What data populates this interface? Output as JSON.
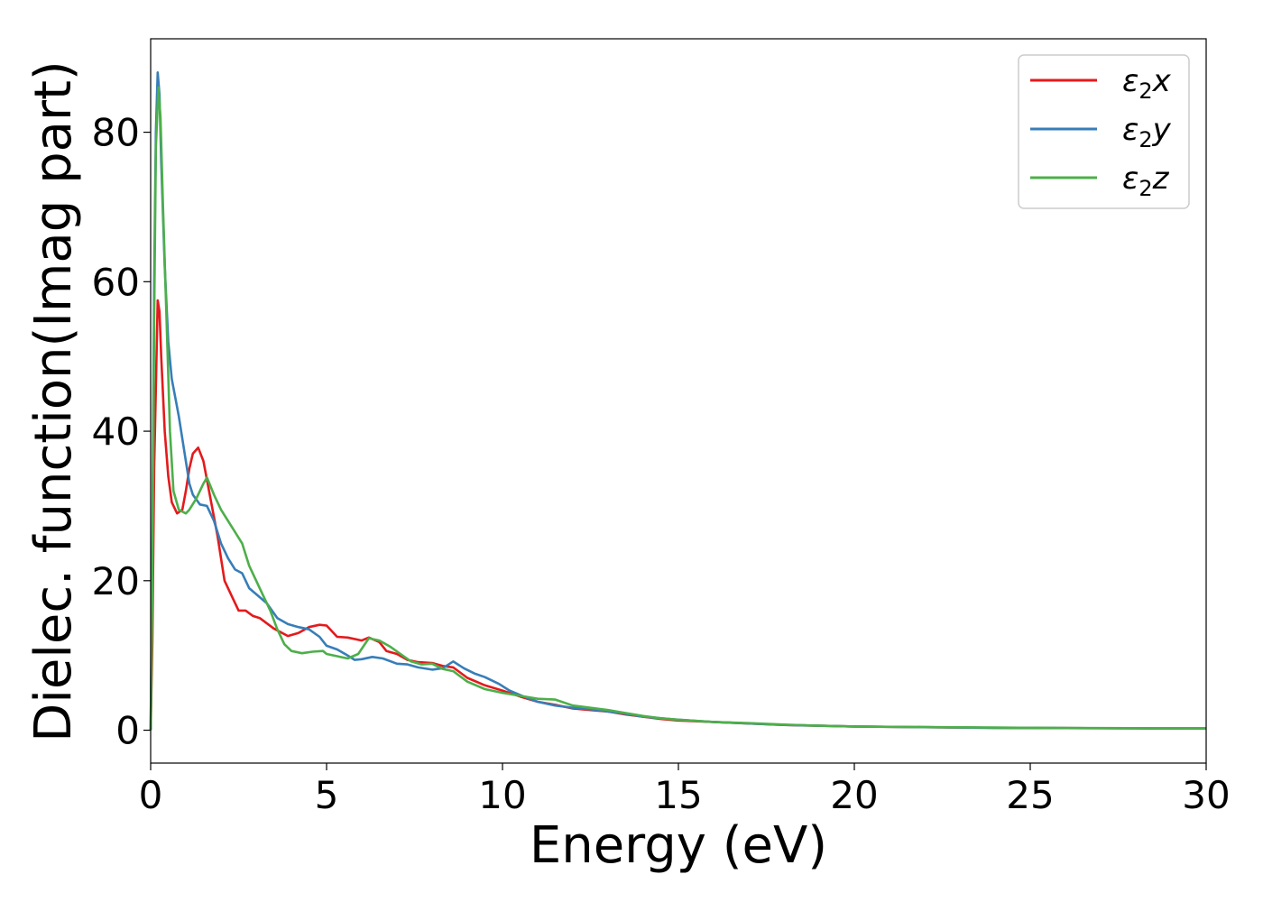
{
  "chart_data": {
    "type": "line",
    "xlabel": "Energy (eV)",
    "ylabel": "Dielec. function(Imag part)",
    "xlim": [
      0,
      30
    ],
    "ylim": [
      -4.4,
      92.5
    ],
    "xticks": [
      0,
      5,
      10,
      15,
      20,
      25,
      30
    ],
    "yticks": [
      0,
      20,
      40,
      60,
      80
    ],
    "grid": false,
    "legend_position": "top-right",
    "series": [
      {
        "name": "ε₂x",
        "legend_base": "ε",
        "legend_sub": "2",
        "legend_var": "x",
        "color": "#e41a1c",
        "points": [
          [
            0,
            0
          ],
          [
            0.05,
            12
          ],
          [
            0.1,
            35
          ],
          [
            0.2,
            57.5
          ],
          [
            0.25,
            56
          ],
          [
            0.3,
            50
          ],
          [
            0.4,
            40
          ],
          [
            0.5,
            34
          ],
          [
            0.6,
            30.5
          ],
          [
            0.75,
            29
          ],
          [
            0.9,
            29.5
          ],
          [
            1.0,
            32
          ],
          [
            1.1,
            35
          ],
          [
            1.2,
            37
          ],
          [
            1.35,
            37.8
          ],
          [
            1.5,
            36
          ],
          [
            1.7,
            31
          ],
          [
            1.9,
            26
          ],
          [
            2.1,
            20
          ],
          [
            2.3,
            18
          ],
          [
            2.5,
            16
          ],
          [
            2.7,
            16
          ],
          [
            2.9,
            15.3
          ],
          [
            3.1,
            15
          ],
          [
            3.5,
            13.6
          ],
          [
            3.9,
            12.6
          ],
          [
            4.2,
            13
          ],
          [
            4.5,
            13.8
          ],
          [
            4.8,
            14.1
          ],
          [
            5.0,
            14
          ],
          [
            5.3,
            12.5
          ],
          [
            5.6,
            12.4
          ],
          [
            6.0,
            12
          ],
          [
            6.2,
            12.4
          ],
          [
            6.5,
            11.8
          ],
          [
            6.7,
            10.6
          ],
          [
            7.0,
            10.2
          ],
          [
            7.3,
            9.4
          ],
          [
            7.6,
            9.1
          ],
          [
            8.0,
            9
          ],
          [
            8.3,
            8.6
          ],
          [
            8.6,
            8.4
          ],
          [
            9.0,
            7
          ],
          [
            9.5,
            6
          ],
          [
            10.0,
            5.3
          ],
          [
            10.5,
            4.5
          ],
          [
            11.0,
            3.8
          ],
          [
            11.5,
            3.4
          ],
          [
            12.0,
            2.9
          ],
          [
            12.5,
            2.7
          ],
          [
            13.0,
            2.5
          ],
          [
            13.5,
            2.1
          ],
          [
            14.0,
            1.8
          ],
          [
            14.5,
            1.5
          ],
          [
            15.0,
            1.3
          ],
          [
            16.0,
            1.1
          ],
          [
            17.0,
            0.9
          ],
          [
            18.0,
            0.7
          ],
          [
            19.0,
            0.6
          ],
          [
            20.0,
            0.5
          ],
          [
            22.0,
            0.4
          ],
          [
            24.0,
            0.32
          ],
          [
            26.0,
            0.28
          ],
          [
            28.0,
            0.25
          ],
          [
            30.0,
            0.23
          ]
        ]
      },
      {
        "name": "ε₂y",
        "legend_base": "ε",
        "legend_sub": "2",
        "legend_var": "y",
        "color": "#377eb8",
        "points": [
          [
            0,
            0
          ],
          [
            0.05,
            25
          ],
          [
            0.1,
            60
          ],
          [
            0.15,
            80
          ],
          [
            0.2,
            88
          ],
          [
            0.25,
            85
          ],
          [
            0.3,
            76
          ],
          [
            0.4,
            62
          ],
          [
            0.5,
            52
          ],
          [
            0.6,
            47
          ],
          [
            0.7,
            44.5
          ],
          [
            0.8,
            42
          ],
          [
            0.9,
            39
          ],
          [
            1.0,
            36
          ],
          [
            1.1,
            33
          ],
          [
            1.2,
            31.5
          ],
          [
            1.4,
            30.2
          ],
          [
            1.6,
            30
          ],
          [
            1.8,
            28
          ],
          [
            2.0,
            25
          ],
          [
            2.2,
            23
          ],
          [
            2.4,
            21.5
          ],
          [
            2.6,
            21
          ],
          [
            2.8,
            19
          ],
          [
            3.0,
            18.2
          ],
          [
            3.3,
            17
          ],
          [
            3.6,
            15
          ],
          [
            3.9,
            14.2
          ],
          [
            4.2,
            13.8
          ],
          [
            4.5,
            13.5
          ],
          [
            4.8,
            12.5
          ],
          [
            5.0,
            11.3
          ],
          [
            5.3,
            10.8
          ],
          [
            5.6,
            10
          ],
          [
            5.8,
            9.4
          ],
          [
            6.0,
            9.5
          ],
          [
            6.3,
            9.8
          ],
          [
            6.6,
            9.6
          ],
          [
            7.0,
            8.9
          ],
          [
            7.3,
            8.8
          ],
          [
            7.6,
            8.4
          ],
          [
            8.0,
            8.1
          ],
          [
            8.3,
            8.3
          ],
          [
            8.6,
            9.2
          ],
          [
            8.9,
            8.3
          ],
          [
            9.2,
            7.6
          ],
          [
            9.5,
            7.1
          ],
          [
            9.9,
            6.2
          ],
          [
            10.2,
            5.3
          ],
          [
            10.6,
            4.5
          ],
          [
            11.0,
            3.8
          ],
          [
            11.5,
            3.3
          ],
          [
            12.0,
            3.0
          ],
          [
            12.5,
            2.8
          ],
          [
            13.0,
            2.5
          ],
          [
            13.5,
            2.2
          ],
          [
            14.0,
            1.8
          ],
          [
            14.5,
            1.6
          ],
          [
            15.0,
            1.4
          ],
          [
            16.0,
            1.1
          ],
          [
            17.0,
            0.9
          ],
          [
            18.0,
            0.7
          ],
          [
            19.0,
            0.6
          ],
          [
            20.0,
            0.5
          ],
          [
            22.0,
            0.4
          ],
          [
            24.0,
            0.32
          ],
          [
            26.0,
            0.28
          ],
          [
            28.0,
            0.25
          ],
          [
            30.0,
            0.23
          ]
        ]
      },
      {
        "name": "ε₂z",
        "legend_base": "ε",
        "legend_sub": "2",
        "legend_var": "z",
        "color": "#4daf4a",
        "points": [
          [
            0,
            0
          ],
          [
            0.05,
            20
          ],
          [
            0.1,
            55
          ],
          [
            0.15,
            78
          ],
          [
            0.22,
            86
          ],
          [
            0.28,
            82
          ],
          [
            0.35,
            70
          ],
          [
            0.45,
            55
          ],
          [
            0.55,
            40
          ],
          [
            0.65,
            32
          ],
          [
            0.8,
            29.5
          ],
          [
            1.0,
            29
          ],
          [
            1.1,
            29.5
          ],
          [
            1.3,
            31
          ],
          [
            1.5,
            33
          ],
          [
            1.6,
            33.8
          ],
          [
            1.8,
            31.5
          ],
          [
            2.0,
            29.5
          ],
          [
            2.2,
            28
          ],
          [
            2.4,
            26.5
          ],
          [
            2.6,
            25
          ],
          [
            2.8,
            22
          ],
          [
            3.0,
            20
          ],
          [
            3.2,
            18
          ],
          [
            3.4,
            16
          ],
          [
            3.6,
            13.5
          ],
          [
            3.8,
            11.5
          ],
          [
            4.0,
            10.6
          ],
          [
            4.3,
            10.3
          ],
          [
            4.6,
            10.5
          ],
          [
            4.9,
            10.6
          ],
          [
            5.0,
            10.2
          ],
          [
            5.3,
            9.9
          ],
          [
            5.6,
            9.6
          ],
          [
            5.9,
            10.2
          ],
          [
            6.2,
            12.3
          ],
          [
            6.5,
            12.0
          ],
          [
            6.8,
            11.2
          ],
          [
            7.1,
            10.2
          ],
          [
            7.4,
            9.2
          ],
          [
            7.7,
            8.8
          ],
          [
            8.0,
            8.9
          ],
          [
            8.3,
            8.2
          ],
          [
            8.6,
            7.9
          ],
          [
            9.0,
            6.5
          ],
          [
            9.5,
            5.5
          ],
          [
            10.0,
            5.0
          ],
          [
            10.5,
            4.6
          ],
          [
            11.0,
            4.2
          ],
          [
            11.5,
            4.1
          ],
          [
            12.0,
            3.3
          ],
          [
            12.5,
            3.0
          ],
          [
            13.0,
            2.7
          ],
          [
            13.5,
            2.3
          ],
          [
            14.0,
            1.9
          ],
          [
            14.5,
            1.6
          ],
          [
            15.0,
            1.4
          ],
          [
            16.0,
            1.1
          ],
          [
            17.0,
            0.95
          ],
          [
            18.0,
            0.75
          ],
          [
            19.0,
            0.6
          ],
          [
            20.0,
            0.5
          ],
          [
            22.0,
            0.42
          ],
          [
            24.0,
            0.35
          ],
          [
            26.0,
            0.3
          ],
          [
            28.0,
            0.27
          ],
          [
            30.0,
            0.25
          ]
        ]
      }
    ]
  }
}
